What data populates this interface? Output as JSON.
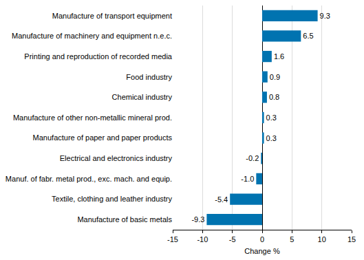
{
  "chart_data": {
    "type": "bar",
    "orientation": "horizontal",
    "categories": [
      "Manufacture of transport equipment",
      "Manufacture of machinery and equipment n.e.c.",
      "Printing and reproduction of recorded media",
      "Food industry",
      "Chemical industry",
      "Manufacture of other non-metallic mineral prod.",
      "Manufacture of paper and paper products",
      "Electrical and electronics industry",
      "Manuf. of fabr. metal prod., exc. mach. and equip.",
      "Textile, clothing and leather industry",
      "Manufacture of basic metals"
    ],
    "values": [
      9.3,
      6.5,
      1.6,
      0.9,
      0.8,
      0.3,
      0.3,
      -0.2,
      -1.0,
      -5.4,
      -9.3
    ],
    "value_labels": [
      "9.3",
      "6.5",
      "1.6",
      "0.9",
      "0.8",
      "0.3",
      "0.3",
      "-0.2",
      "-1.0",
      "-5.4",
      "-9.3"
    ],
    "data_labels": true,
    "color": "#0073b0",
    "x_label": "Change %",
    "xlim": [
      -15,
      15
    ],
    "xticks": [
      -15,
      -10,
      -5,
      0,
      5,
      10,
      15
    ],
    "grid": true
  }
}
